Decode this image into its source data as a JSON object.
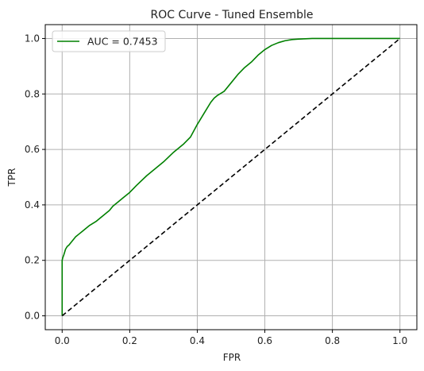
{
  "chart_data": {
    "type": "line",
    "title": "ROC Curve - Tuned Ensemble",
    "xlabel": "FPR",
    "ylabel": "TPR",
    "xlim": [
      -0.05,
      1.05
    ],
    "ylim": [
      -0.05,
      1.05
    ],
    "xticks": [
      0.0,
      0.2,
      0.4,
      0.6,
      0.8,
      1.0
    ],
    "xtick_labels": [
      "0.0",
      "0.2",
      "0.4",
      "0.6",
      "0.8",
      "1.0"
    ],
    "yticks": [
      0.0,
      0.2,
      0.4,
      0.6,
      0.8,
      1.0
    ],
    "ytick_labels": [
      "0.0",
      "0.2",
      "0.4",
      "0.6",
      "0.8",
      "1.0"
    ],
    "grid": true,
    "legend_position": "top-left",
    "series": [
      {
        "name": "AUC = 0.7453",
        "color": "#008000",
        "style": "solid",
        "x": [
          0.0,
          0.0,
          0.0,
          0.002,
          0.005,
          0.01,
          0.015,
          0.02,
          0.03,
          0.04,
          0.05,
          0.06,
          0.07,
          0.08,
          0.1,
          0.12,
          0.14,
          0.15,
          0.16,
          0.18,
          0.2,
          0.22,
          0.25,
          0.28,
          0.3,
          0.33,
          0.35,
          0.36,
          0.38,
          0.4,
          0.42,
          0.44,
          0.45,
          0.46,
          0.48,
          0.5,
          0.52,
          0.54,
          0.56,
          0.58,
          0.6,
          0.62,
          0.64,
          0.66,
          0.68,
          0.7,
          0.72,
          0.74,
          0.76,
          0.8,
          0.9,
          1.0
        ],
        "y": [
          0.0,
          0.15,
          0.2,
          0.21,
          0.22,
          0.24,
          0.25,
          0.255,
          0.27,
          0.285,
          0.295,
          0.305,
          0.315,
          0.325,
          0.34,
          0.36,
          0.38,
          0.395,
          0.405,
          0.425,
          0.445,
          0.47,
          0.505,
          0.535,
          0.555,
          0.59,
          0.61,
          0.62,
          0.645,
          0.69,
          0.73,
          0.77,
          0.785,
          0.795,
          0.81,
          0.84,
          0.87,
          0.895,
          0.915,
          0.94,
          0.96,
          0.975,
          0.985,
          0.992,
          0.996,
          0.998,
          0.999,
          1.0,
          1.0,
          1.0,
          1.0,
          1.0
        ]
      },
      {
        "name": "",
        "color": "#000000",
        "style": "dashed",
        "x": [
          0.0,
          1.0
        ],
        "y": [
          0.0,
          1.0
        ]
      }
    ]
  }
}
